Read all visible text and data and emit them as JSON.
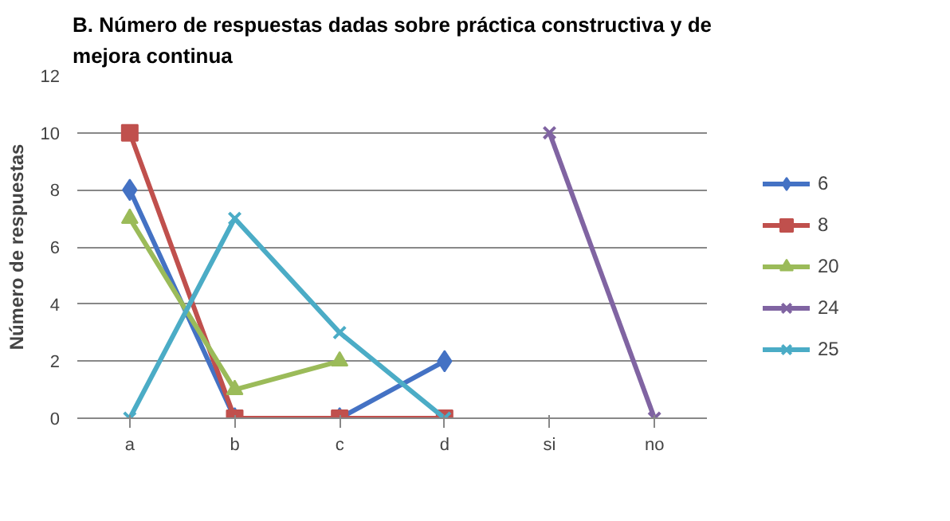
{
  "chart_data": {
    "type": "line",
    "title": "B. Número de respuestas dadas sobre práctica constructiva y de\nmejora continua",
    "ylabel": "Número de respuestas",
    "categories": [
      "a",
      "b",
      "c",
      "d",
      "si",
      "no"
    ],
    "series": [
      {
        "name": "6",
        "color": "#4472c4",
        "marker": "diamond",
        "values": [
          8,
          0,
          0,
          2,
          null,
          null
        ]
      },
      {
        "name": "8",
        "color": "#c0504d",
        "marker": "square",
        "values": [
          10,
          0,
          0,
          0,
          null,
          null
        ]
      },
      {
        "name": "20",
        "color": "#9bbb59",
        "marker": "triangle",
        "values": [
          7,
          1,
          2,
          null,
          null,
          null
        ]
      },
      {
        "name": "24",
        "color": "#8064a2",
        "marker": "cross",
        "values": [
          null,
          null,
          null,
          null,
          10,
          0
        ]
      },
      {
        "name": "25",
        "color": "#4bacc6",
        "marker": "cross",
        "values": [
          0,
          7,
          3,
          0,
          null,
          null
        ]
      }
    ],
    "ylim": [
      0,
      12
    ],
    "yticks": [
      0,
      2,
      4,
      6,
      8,
      10,
      12
    ],
    "grid": "y",
    "legend": "right"
  }
}
